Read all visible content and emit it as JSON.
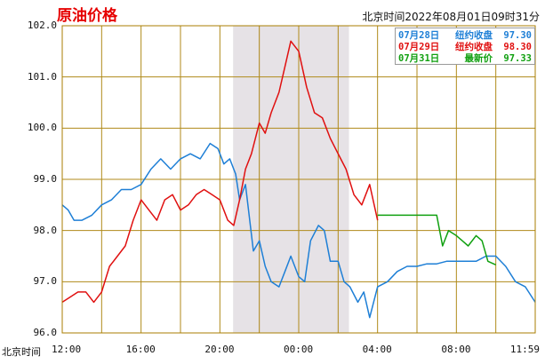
{
  "title": "原油价格",
  "timestamp": "北京时间2022年08月01日09时31分",
  "x_axis_title": "北京时间",
  "legend": [
    {
      "date": "07月28日",
      "label": "纽约收盘",
      "value": "97.30",
      "color": "#1e7fd6"
    },
    {
      "date": "07月29日",
      "label": "纽约收盘",
      "value": "98.30",
      "color": "#e01010"
    },
    {
      "date": "07月31日",
      "label": "最新价",
      "value": "97.33",
      "color": "#10a010"
    }
  ],
  "chart_data": {
    "type": "line",
    "title": "原油价格",
    "xlabel": "北京时间",
    "ylabel": "",
    "ylim": [
      96.0,
      102.0
    ],
    "y_ticks": [
      "102.0",
      "101.0",
      "100.0",
      "99.0",
      "98.0",
      "97.0",
      "96.0"
    ],
    "x_tick_labels": [
      "12:00",
      "16:00",
      "20:00",
      "00:00",
      "04:00",
      "08:00",
      "11:59"
    ],
    "x_domain_hours": [
      0,
      24
    ],
    "shaded_region_hours": [
      8.67,
      10.0,
      14.55
    ],
    "grid": true,
    "legend_position": "top-right",
    "series": [
      {
        "name": "07月28日",
        "color": "#1e7fd6",
        "x": [
          0,
          0.3,
          0.6,
          1.0,
          1.5,
          2.0,
          2.5,
          3.0,
          3.5,
          4.0,
          4.5,
          5.0,
          5.5,
          6.0,
          6.5,
          7.0,
          7.5,
          7.9,
          8.2,
          8.5,
          8.8,
          9.0,
          9.3,
          9.7,
          10.0,
          10.3,
          10.6,
          11.0,
          11.3,
          11.6,
          12.0,
          12.3,
          12.6,
          13.0,
          13.3,
          13.6,
          14.0,
          14.3,
          14.6,
          15.0,
          15.3,
          15.6,
          16.0,
          16.5,
          17.0,
          17.5,
          18.0,
          18.5,
          19.0,
          19.5,
          20.0,
          20.5,
          21.0,
          21.5,
          22.0,
          22.5,
          23.0,
          23.5,
          24.0
        ],
        "y": [
          98.5,
          98.4,
          98.2,
          98.2,
          98.3,
          98.5,
          98.6,
          98.8,
          98.8,
          98.9,
          99.2,
          99.4,
          99.2,
          99.4,
          99.5,
          99.4,
          99.7,
          99.6,
          99.3,
          99.4,
          99.1,
          98.6,
          98.9,
          97.6,
          97.8,
          97.3,
          97.0,
          96.9,
          97.2,
          97.5,
          97.1,
          97.0,
          97.8,
          98.1,
          98.0,
          97.4,
          97.4,
          97.0,
          96.9,
          96.6,
          96.8,
          96.3,
          96.9,
          97.0,
          97.2,
          97.3,
          97.3,
          97.35,
          97.35,
          97.4,
          97.4,
          97.4,
          97.4,
          97.5,
          97.5,
          97.3,
          97.0,
          96.9,
          96.6
        ]
      },
      {
        "name": "07月29日",
        "color": "#e01010",
        "x": [
          0,
          0.4,
          0.8,
          1.2,
          1.6,
          2.0,
          2.4,
          2.8,
          3.2,
          3.6,
          4.0,
          4.4,
          4.8,
          5.2,
          5.6,
          6.0,
          6.4,
          6.8,
          7.2,
          7.6,
          8.0,
          8.4,
          8.7,
          9.0,
          9.3,
          9.6,
          10.0,
          10.3,
          10.6,
          11.0,
          11.3,
          11.6,
          12.0,
          12.4,
          12.8,
          13.2,
          13.6,
          14.0,
          14.4,
          14.8,
          15.2,
          15.6,
          16.0
        ],
        "y": [
          96.6,
          96.7,
          96.8,
          96.8,
          96.6,
          96.8,
          97.3,
          97.5,
          97.7,
          98.2,
          98.6,
          98.4,
          98.2,
          98.6,
          98.7,
          98.4,
          98.5,
          98.7,
          98.8,
          98.7,
          98.6,
          98.2,
          98.1,
          98.6,
          99.2,
          99.5,
          100.1,
          99.9,
          100.3,
          100.7,
          101.2,
          101.7,
          101.5,
          100.8,
          100.3,
          100.2,
          99.8,
          99.5,
          99.2,
          98.7,
          98.5,
          98.9,
          98.2
        ]
      },
      {
        "name": "07月31日",
        "color": "#10a010",
        "x": [
          16.0,
          16.5,
          17.0,
          17.5,
          18.0,
          18.5,
          19.0,
          19.3,
          19.6,
          20.0,
          20.3,
          20.6,
          21.0,
          21.3,
          21.6,
          22.0
        ],
        "y": [
          98.3,
          98.3,
          98.3,
          98.3,
          98.3,
          98.3,
          98.3,
          97.7,
          98.0,
          97.9,
          97.8,
          97.7,
          97.9,
          97.8,
          97.4,
          97.33
        ]
      }
    ]
  }
}
